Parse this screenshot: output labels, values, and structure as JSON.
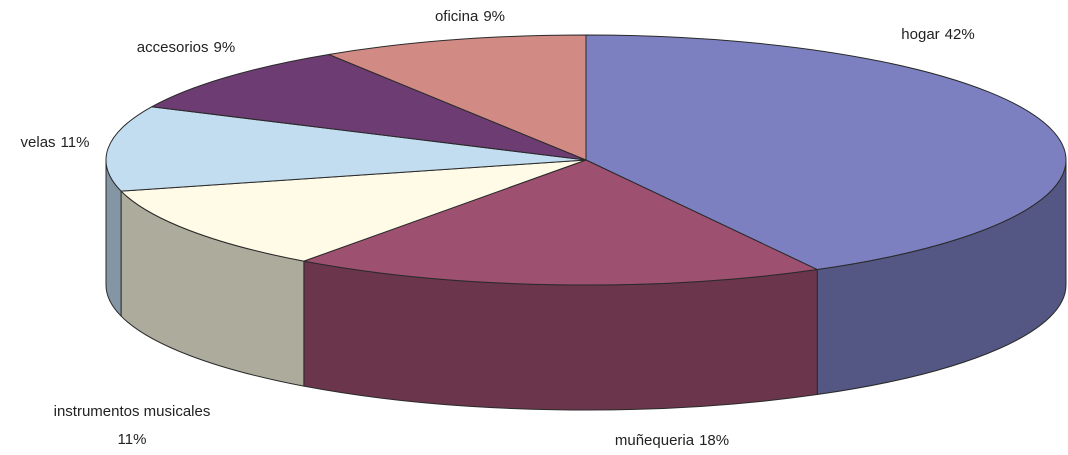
{
  "chart_data": {
    "type": "pie",
    "categories": [
      "hogar",
      "muñequeria",
      "instrumentos musicales",
      "velas",
      "accesorios",
      "oficina"
    ],
    "values": [
      42,
      18,
      11,
      11,
      9,
      9
    ],
    "value_labels": [
      "42%",
      "18%",
      "11%",
      "11%",
      "9%",
      "9%"
    ],
    "colors": [
      "#7c80c0",
      "#9e5070",
      "#fffbe6",
      "#c2dcf0",
      "#6c3c72",
      "#d28a84"
    ]
  }
}
